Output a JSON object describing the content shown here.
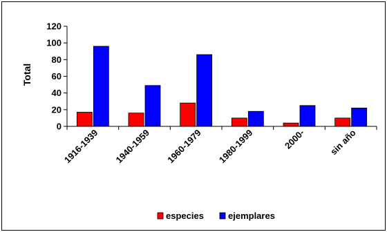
{
  "chart_data": {
    "type": "bar",
    "title": "",
    "xlabel": "",
    "ylabel": "Total",
    "ylim": [
      0,
      120
    ],
    "yticks": [
      0,
      20,
      40,
      60,
      80,
      100,
      120
    ],
    "grid": false,
    "legend_position": "bottom",
    "categories": [
      "1916-1939",
      "1940-1959",
      "1960-1979",
      "1980-1999",
      "2000-",
      "sin año"
    ],
    "series": [
      {
        "name": "especies",
        "color": "#ff0000",
        "values": [
          17,
          16,
          28,
          10,
          4,
          10
        ]
      },
      {
        "name": "ejemplares",
        "color": "#0000ff",
        "values": [
          96,
          49,
          86,
          18,
          25,
          22
        ]
      }
    ]
  }
}
